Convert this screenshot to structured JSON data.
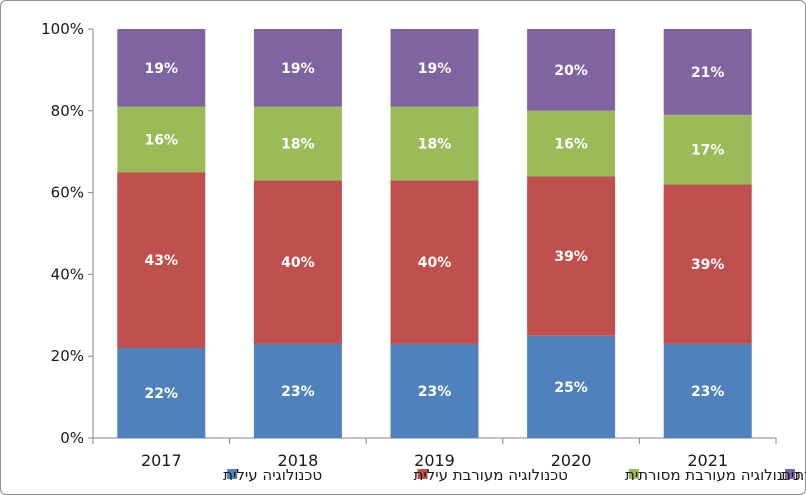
{
  "chart_data": {
    "type": "bar",
    "stacked": true,
    "percent": true,
    "categories": [
      "2017",
      "2018",
      "2019",
      "2020",
      "2021"
    ],
    "ylim": [
      0,
      100
    ],
    "yticks": [
      "0%",
      "20%",
      "40%",
      "60%",
      "80%",
      "100%"
    ],
    "grid": false,
    "legend_position": "bottom",
    "series": [
      {
        "name": "טכנולוגיה עילית",
        "color": "#4f81bd",
        "values": [
          22,
          23,
          23,
          25,
          23
        ],
        "labels": [
          "22%",
          "23%",
          "23%",
          "25%",
          "23%"
        ]
      },
      {
        "name": "טכנולוגיה מעורבת עילית",
        "color": "#c0504d",
        "values": [
          43,
          40,
          40,
          39,
          39
        ],
        "labels": [
          "43%",
          "40%",
          "40%",
          "39%",
          "39%"
        ]
      },
      {
        "name": "טכנולוגיה מעורבת מסורתית",
        "color": "#9bbb59",
        "values": [
          16,
          18,
          18,
          16,
          17
        ],
        "labels": [
          "16%",
          "18%",
          "18%",
          "16%",
          "17%"
        ]
      },
      {
        "name": "טכנולוגיה מסורתית",
        "color": "#8064a2",
        "values": [
          19,
          19,
          19,
          20,
          21
        ],
        "labels": [
          "19%",
          "19%",
          "19%",
          "20%",
          "21%"
        ]
      }
    ]
  }
}
